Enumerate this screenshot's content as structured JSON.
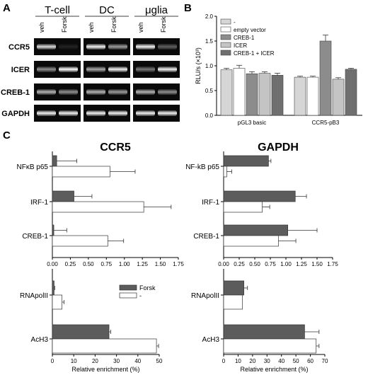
{
  "panels": {
    "a": "A",
    "b": "B",
    "c": "C"
  },
  "gel": {
    "groups": [
      {
        "label": "T-cell",
        "lanes": [
          "veh",
          "Forsk"
        ]
      },
      {
        "label": "DC",
        "lanes": [
          "veh",
          "Forsk"
        ]
      },
      {
        "label": "μglia",
        "lanes": [
          "veh",
          "Forsk"
        ]
      }
    ],
    "rows": [
      "CCR5",
      "ICER",
      "CREB-1",
      "GAPDH"
    ],
    "band_intensity": [
      [
        [
          0.85,
          0.1
        ],
        [
          0.95,
          0.6
        ],
        [
          0.95,
          0.35
        ]
      ],
      [
        [
          0.55,
          1.0
        ],
        [
          0.65,
          0.95
        ],
        [
          0.45,
          0.95
        ]
      ],
      [
        [
          0.7,
          0.55
        ],
        [
          0.7,
          0.6
        ],
        [
          0.7,
          0.55
        ]
      ],
      [
        [
          0.95,
          0.95
        ],
        [
          0.95,
          0.95
        ],
        [
          0.95,
          0.95
        ]
      ]
    ]
  },
  "chart_data": [
    {
      "id": "b",
      "type": "bar",
      "ylabel": "RLU/s (×10³)",
      "ylim": [
        0,
        2.0
      ],
      "yticks": [
        "0.0",
        "0.5",
        "1.0",
        "1.5",
        "2.0"
      ],
      "categories": [
        "pGL3 basic",
        "CCR5-pB3"
      ],
      "legend_position": "top-left",
      "series": [
        {
          "name": "-",
          "color": "#d6d6d6",
          "values": [
            0.92,
            0.77
          ],
          "errors": [
            0.03,
            0.02
          ]
        },
        {
          "name": "empty vector",
          "color": "#ffffff",
          "values": [
            0.95,
            0.77
          ],
          "errors": [
            0.06,
            0.02
          ]
        },
        {
          "name": "CREB-1",
          "color": "#8c8c8c",
          "values": [
            0.84,
            1.5
          ],
          "errors": [
            0.04,
            0.12
          ]
        },
        {
          "name": "ICER",
          "color": "#c4c4c4",
          "values": [
            0.85,
            0.73
          ],
          "errors": [
            0.03,
            0.03
          ]
        },
        {
          "name": "CREB-1 + ICER",
          "color": "#6f6f6f",
          "values": [
            0.81,
            0.93
          ],
          "errors": [
            0.04,
            0.02
          ]
        }
      ]
    },
    {
      "id": "c-ccr5-top",
      "type": "bar",
      "orientation": "horizontal",
      "title": "CCR5",
      "categories": [
        "NFκB p65",
        "IRF-1",
        "CREB-1"
      ],
      "xlim": [
        0,
        1.75
      ],
      "xticks": [
        "0.00",
        "0.25",
        "0.50",
        "0.75",
        "1.00",
        "1.25",
        "1.50",
        "1.75"
      ],
      "series": [
        {
          "name": "Forsk",
          "values": [
            0.06,
            0.3,
            0.02
          ],
          "errors": [
            0.28,
            0.25,
            0.18
          ]
        },
        {
          "name": "-",
          "values": [
            0.8,
            1.27,
            0.77
          ],
          "errors": [
            0.35,
            0.38,
            0.22
          ]
        }
      ]
    },
    {
      "id": "c-ccr5-bottom",
      "type": "bar",
      "orientation": "horizontal",
      "categories": [
        "RNApolII",
        "AcH3"
      ],
      "xlim": [
        0,
        50
      ],
      "xticks": [
        "0",
        "10",
        "20",
        "30",
        "40",
        "50"
      ],
      "xlabel": "Relative enrichment (%)",
      "legend_position": "top-right",
      "series": [
        {
          "name": "Forsk",
          "values": [
            0.8,
            26.5
          ],
          "errors": [
            0.3,
            0.8
          ]
        },
        {
          "name": "-",
          "values": [
            4.5,
            48.7
          ],
          "errors": [
            1.0,
            1.0
          ]
        }
      ]
    },
    {
      "id": "c-gapdh-top",
      "type": "bar",
      "orientation": "horizontal",
      "title": "GAPDH",
      "categories": [
        "NF-kB p65",
        "IRF-1",
        "CREB-1"
      ],
      "xlim": [
        0,
        1.75
      ],
      "xticks": [
        "0.00",
        "0.25",
        "0.50",
        "0.75",
        "1.00",
        "1.25",
        "1.50",
        "1.75"
      ],
      "series": [
        {
          "name": "Forsk",
          "values": [
            0.72,
            1.15,
            1.03
          ],
          "errors": [
            0.04,
            0.18,
            0.47
          ]
        },
        {
          "name": "-",
          "values": [
            0.05,
            0.62,
            0.88
          ],
          "errors": [
            0.08,
            0.12,
            0.28
          ]
        }
      ]
    },
    {
      "id": "c-gapdh-bottom",
      "type": "bar",
      "orientation": "horizontal",
      "categories": [
        "RNApolII",
        "AcH3"
      ],
      "xlim": [
        0,
        70
      ],
      "xticks": [
        "0",
        "10",
        "20",
        "30",
        "40",
        "50",
        "60",
        "70"
      ],
      "xlabel": "Relative enrichment (%)",
      "series": [
        {
          "name": "Forsk",
          "values": [
            14.0,
            56.0
          ],
          "errors": [
            2.5,
            10.0
          ]
        },
        {
          "name": "-",
          "values": [
            13.0,
            64.0
          ],
          "errors": [
            0.0,
            2.0
          ]
        }
      ]
    }
  ]
}
